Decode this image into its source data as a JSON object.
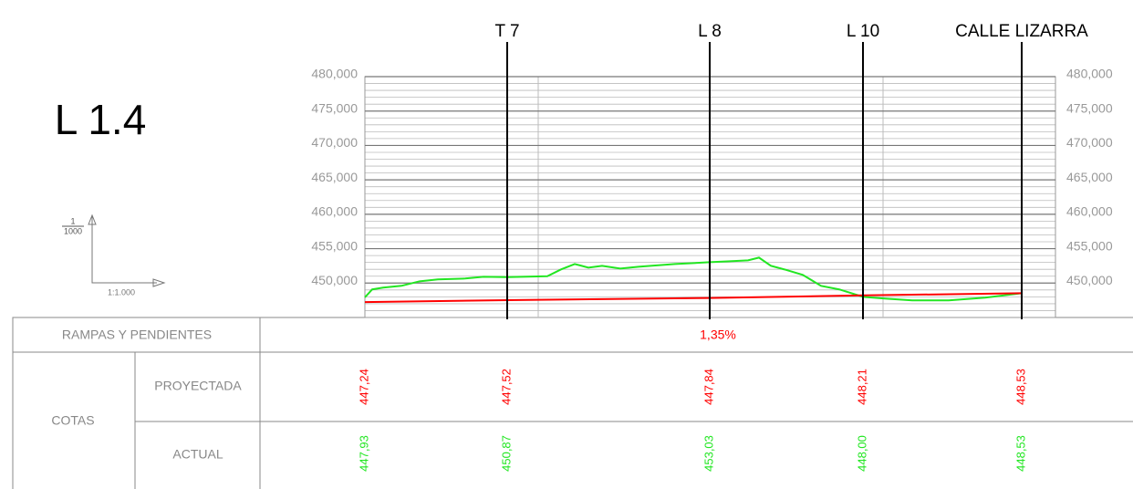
{
  "header": {
    "title": "L 1.4",
    "scale_num": "1",
    "scale_den": "1000",
    "scale_label": "1:1.000"
  },
  "chart_data": {
    "type": "line",
    "xlim": [
      0,
      757
    ],
    "ylim": [
      445,
      480
    ],
    "yticks": [
      {
        "value": 480,
        "label": "480,000"
      },
      {
        "value": 475,
        "label": "475,000"
      },
      {
        "value": 470,
        "label": "470,000"
      },
      {
        "value": 465,
        "label": "465,000"
      },
      {
        "value": 460,
        "label": "460,000"
      },
      {
        "value": 455,
        "label": "455,000"
      },
      {
        "value": 450,
        "label": "450,000"
      }
    ],
    "grid": true,
    "stations": {
      "x": [
        0,
        156,
        378,
        546,
        720
      ],
      "labels": [
        null,
        "T 7",
        "L 8",
        "L 10",
        "CALLE LIZARRA"
      ]
    },
    "series": [
      {
        "color": "#22e622",
        "x": [
          0,
          8,
          20,
          40,
          60,
          80,
          110,
          130,
          156,
          200,
          215,
          230,
          245,
          260,
          280,
          300,
          340,
          378,
          400,
          420,
          432,
          445,
          460,
          480,
          500,
          520,
          546,
          570,
          600,
          640,
          680,
          720
        ],
        "values": [
          447.93,
          449.08,
          449.34,
          449.6,
          450.26,
          450.53,
          450.66,
          450.92,
          450.87,
          451.0,
          451.98,
          452.77,
          452.25,
          452.51,
          452.11,
          452.38,
          452.77,
          453.03,
          453.17,
          453.3,
          453.7,
          452.51,
          451.98,
          451.19,
          449.6,
          449.08,
          448.0,
          447.75,
          447.49,
          447.49,
          447.89,
          448.53
        ]
      },
      {
        "color": "#ff0000",
        "x": [
          0,
          156,
          378,
          546,
          720
        ],
        "values": [
          447.24,
          447.52,
          447.84,
          448.21,
          448.53
        ]
      }
    ]
  },
  "table": {
    "slope_label": "RAMPAS Y PENDIENTES",
    "slope": "1,35%",
    "group_label": "COTAS",
    "projected_label": "PROYECTADA",
    "actual_label": "ACTUAL",
    "projected": [
      "447,24",
      "447,52",
      "447,84",
      "448,21",
      "448,53"
    ],
    "actual": [
      "447,93",
      "450,87",
      "453,03",
      "448,00",
      "448,53"
    ]
  }
}
